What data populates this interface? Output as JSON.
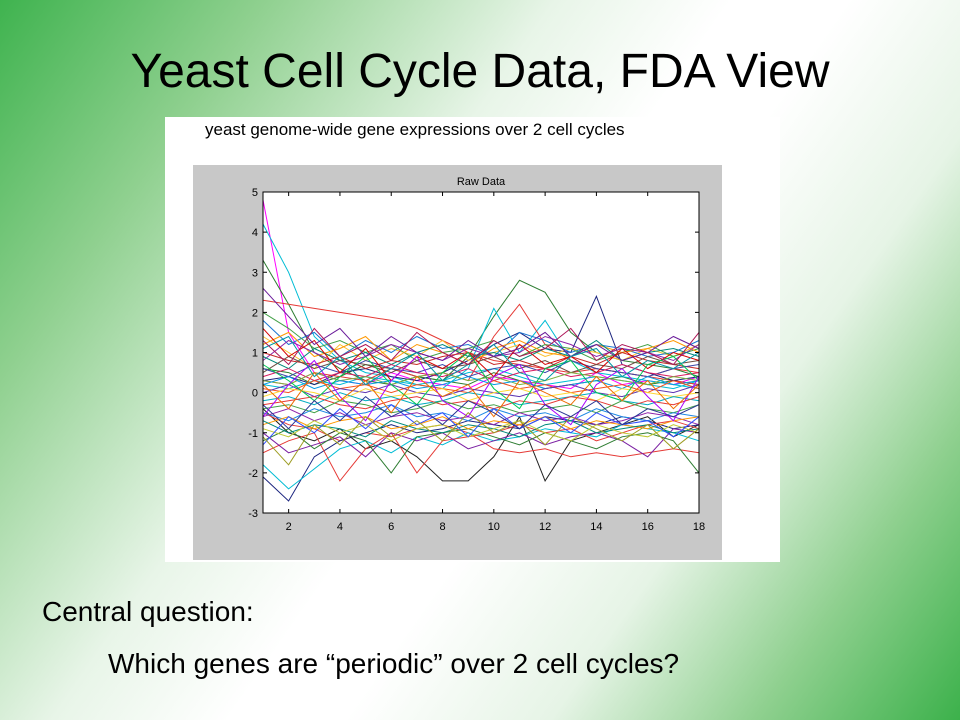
{
  "slide": {
    "title": "Yeast Cell Cycle Data, FDA View",
    "figure_caption": "yeast genome-wide gene expressions over 2 cell cycles",
    "question_label": "Central question:",
    "question_text": "Which genes are “periodic” over 2 cell cycles?"
  },
  "chart_data": {
    "type": "line",
    "title": "Raw Data",
    "xlabel": "",
    "ylabel": "",
    "xlim": [
      1,
      18
    ],
    "ylim": [
      -3,
      5
    ],
    "xticks": [
      2,
      4,
      6,
      8,
      10,
      12,
      14,
      16,
      18
    ],
    "yticks": [
      -3,
      -2,
      -1,
      0,
      1,
      2,
      3,
      4,
      5
    ],
    "x": [
      1,
      2,
      3,
      4,
      5,
      6,
      7,
      8,
      9,
      10,
      11,
      12,
      13,
      14,
      15,
      16,
      17,
      18
    ],
    "grid": false,
    "legend": "none",
    "series": [
      {
        "values": [
          4.8,
          1.5,
          0.5,
          0.3,
          0.2,
          0.5,
          0.3,
          0.2,
          0.1,
          0.4,
          0.3,
          0.2,
          0.1,
          0.5,
          0.2,
          0.3,
          0.2,
          0.4
        ],
        "color": "#ff00ff"
      },
      {
        "values": [
          4.2,
          3.0,
          1.4,
          0.8,
          0.5,
          0.4,
          0.2,
          0.3,
          0.5,
          0.6,
          0.4,
          0.2,
          0.3,
          0.4,
          0.3,
          0.2,
          0.1,
          0.3
        ],
        "color": "#00bcd4"
      },
      {
        "values": [
          3.3,
          2.2,
          1.0,
          0.6,
          0.3,
          0.2,
          0.4,
          0.3,
          0.2,
          0.5,
          0.3,
          0.1,
          0.2,
          0.3,
          0.4,
          0.2,
          0.3,
          0.2
        ],
        "color": "#2e7d32"
      },
      {
        "values": [
          2.3,
          2.2,
          2.1,
          2.0,
          1.9,
          1.8,
          1.6,
          1.3,
          1.0,
          0.8,
          0.7,
          0.6,
          0.5,
          0.6,
          0.5,
          0.4,
          0.3,
          0.2
        ],
        "color": "#e53935"
      },
      {
        "values": [
          0.6,
          0.5,
          0.2,
          0.4,
          0.7,
          0.6,
          0.4,
          0.3,
          0.9,
          1.9,
          2.8,
          2.5,
          1.5,
          1.0,
          0.8,
          0.7,
          0.6,
          0.4
        ],
        "color": "#2e7d32"
      },
      {
        "values": [
          0.3,
          0.4,
          0.2,
          0.5,
          0.6,
          0.4,
          0.3,
          0.5,
          0.8,
          1.2,
          1.5,
          1.1,
          1.0,
          2.4,
          0.7,
          0.5,
          0.3,
          0.4
        ],
        "color": "#1a237e"
      },
      {
        "values": [
          0.2,
          0.1,
          0.3,
          0.2,
          0.4,
          0.3,
          0.2,
          0.1,
          0.6,
          2.1,
          1.0,
          1.8,
          0.8,
          0.5,
          0.4,
          0.3,
          0.2,
          0.1
        ],
        "color": "#00bcd4"
      },
      {
        "values": [
          0.3,
          0.2,
          0.5,
          0.4,
          0.3,
          0.6,
          0.4,
          0.5,
          0.3,
          1.4,
          2.2,
          1.2,
          0.8,
          0.6,
          0.5,
          0.4,
          0.6,
          0.5
        ],
        "color": "#e53935"
      },
      {
        "values": [
          -0.4,
          -1.0,
          -1.2,
          -0.9,
          -1.4,
          -1.2,
          -1.6,
          -2.2,
          -2.2,
          -1.6,
          -0.6,
          -2.2,
          -1.2,
          -1.0,
          -0.8,
          -0.6,
          -1.1,
          -0.8
        ],
        "color": "#212121"
      },
      {
        "values": [
          -0.5,
          -0.8,
          -0.9,
          -1.2,
          -1.0,
          -1.1,
          -0.9,
          -0.8,
          -1.0,
          -1.4,
          -1.5,
          -1.4,
          -1.6,
          -1.5,
          -1.6,
          -1.5,
          -1.4,
          -1.5
        ],
        "color": "#e53935"
      },
      {
        "values": [
          -2.1,
          -2.7,
          -1.6,
          -1.2,
          -1.0,
          -0.8,
          -1.0,
          -0.9,
          -0.7,
          -0.8,
          -0.9,
          -0.6,
          -0.7,
          -0.8,
          -0.6,
          -0.7,
          -0.9,
          -0.8
        ],
        "color": "#1a237e"
      },
      {
        "values": [
          -1.8,
          -2.4,
          -1.9,
          -1.4,
          -1.2,
          -1.5,
          -1.1,
          -1.3,
          -1.0,
          -1.2,
          -1.1,
          -0.9,
          -1.0,
          -1.1,
          -0.8,
          -0.9,
          -1.0,
          -1.2
        ],
        "color": "#00bcd4"
      },
      {
        "values": [
          -1.5,
          -1.2,
          -1.0,
          -2.2,
          -1.4,
          -1.0,
          -2.0,
          -1.2,
          -1.1,
          -1.0,
          -0.8,
          -1.0,
          -0.9,
          -1.2,
          -1.0,
          -0.8,
          -0.7,
          -0.9
        ],
        "color": "#e53935"
      },
      {
        "values": [
          -1.0,
          -1.5,
          -1.3,
          -1.1,
          -1.6,
          -1.0,
          -1.2,
          -1.0,
          -1.4,
          -1.2,
          -1.0,
          -1.3,
          -1.1,
          -1.0,
          -1.2,
          -1.6,
          -0.9,
          -1.0
        ],
        "color": "#7b1fa2"
      },
      {
        "values": [
          -1.2,
          -0.9,
          -1.4,
          -1.0,
          -1.2,
          -2.0,
          -1.1,
          -1.0,
          -0.9,
          -1.1,
          -1.3,
          -1.0,
          -1.2,
          -1.4,
          -1.1,
          -1.0,
          -1.2,
          -2.0
        ],
        "color": "#2e7d32"
      },
      {
        "values": [
          1.4,
          1.0,
          0.6,
          1.2,
          0.8,
          1.1,
          0.9,
          1.3,
          0.8,
          1.0,
          1.2,
          0.9,
          1.1,
          1.0,
          0.8,
          1.1,
          0.9,
          1.2
        ],
        "color": "#fbc02d"
      },
      {
        "values": [
          1.8,
          1.2,
          1.5,
          0.9,
          1.3,
          1.0,
          1.4,
          1.1,
          1.2,
          0.9,
          1.5,
          1.3,
          1.0,
          1.2,
          1.1,
          0.9,
          1.0,
          1.3
        ],
        "color": "#1976d2"
      },
      {
        "values": [
          2.0,
          1.6,
          1.1,
          1.3,
          1.0,
          1.2,
          0.8,
          1.0,
          1.1,
          1.3,
          0.9,
          1.2,
          1.1,
          0.8,
          1.0,
          1.2,
          0.9,
          1.1
        ],
        "color": "#43a047"
      },
      {
        "values": [
          1.2,
          1.5,
          0.9,
          1.1,
          1.4,
          0.8,
          1.2,
          1.0,
          0.7,
          1.1,
          1.3,
          1.0,
          0.9,
          1.2,
          1.0,
          1.1,
          1.3,
          1.0
        ],
        "color": "#ff9800"
      },
      {
        "values": [
          0.8,
          1.3,
          1.0,
          0.7,
          0.9,
          1.2,
          1.0,
          0.8,
          1.1,
          0.9,
          1.0,
          1.4,
          1.2,
          0.9,
          1.1,
          1.0,
          0.8,
          1.2
        ],
        "color": "#8e24aa"
      },
      {
        "values": [
          0.9,
          0.6,
          1.1,
          0.8,
          1.0,
          0.7,
          1.0,
          1.2,
          0.9,
          1.0,
          0.8,
          1.1,
          0.9,
          1.3,
          0.8,
          1.0,
          1.1,
          0.9
        ],
        "color": "#00897b"
      },
      {
        "values": [
          1.0,
          0.8,
          0.7,
          0.9,
          0.6,
          0.8,
          0.7,
          0.9,
          1.0,
          0.7,
          0.8,
          0.6,
          0.9,
          0.7,
          1.0,
          0.8,
          0.7,
          0.6
        ],
        "color": "#c62828"
      },
      {
        "values": [
          0.5,
          0.9,
          0.6,
          0.8,
          0.7,
          0.5,
          0.8,
          0.6,
          0.7,
          0.9,
          0.6,
          0.8,
          0.5,
          0.7,
          0.6,
          0.9,
          0.7,
          0.8
        ],
        "color": "#6d4c41"
      },
      {
        "values": [
          0.6,
          0.4,
          0.7,
          0.5,
          0.8,
          0.6,
          0.5,
          0.7,
          0.4,
          0.6,
          0.7,
          0.5,
          0.8,
          0.6,
          0.5,
          0.4,
          0.6,
          0.7
        ],
        "color": "#3949ab"
      },
      {
        "values": [
          0.4,
          0.6,
          0.3,
          0.5,
          0.4,
          0.7,
          0.5,
          0.4,
          0.6,
          0.3,
          0.5,
          0.6,
          0.4,
          0.5,
          0.7,
          0.5,
          0.4,
          0.5
        ],
        "color": "#d81b60"
      },
      {
        "values": [
          0.3,
          0.2,
          0.5,
          0.3,
          0.4,
          0.2,
          0.4,
          0.5,
          0.3,
          0.4,
          0.2,
          0.3,
          0.5,
          0.4,
          0.3,
          0.2,
          0.4,
          0.3
        ],
        "color": "#7cb342"
      },
      {
        "values": [
          0.2,
          0.4,
          0.1,
          0.3,
          0.2,
          0.3,
          0.1,
          0.2,
          0.4,
          0.2,
          0.3,
          0.1,
          0.2,
          0.3,
          0.1,
          0.4,
          0.2,
          0.3
        ],
        "color": "#039be5"
      },
      {
        "values": [
          0.1,
          0.0,
          0.3,
          0.1,
          0.2,
          0.0,
          0.2,
          0.1,
          0.0,
          0.3,
          0.1,
          0.2,
          0.0,
          0.1,
          0.2,
          0.0,
          0.3,
          0.1
        ],
        "color": "#f4511e"
      },
      {
        "values": [
          0.0,
          0.2,
          -0.1,
          0.1,
          0.0,
          0.2,
          0.0,
          -0.1,
          0.1,
          0.0,
          -0.1,
          0.1,
          0.2,
          0.0,
          -0.1,
          0.1,
          0.0,
          0.2
        ],
        "color": "#5e35b1"
      },
      {
        "values": [
          -0.1,
          0.1,
          0.0,
          -0.2,
          0.1,
          -0.1,
          0.0,
          0.1,
          -0.2,
          0.0,
          0.1,
          -0.1,
          0.0,
          -0.2,
          0.1,
          0.0,
          -0.1,
          0.0
        ],
        "color": "#fdd835"
      },
      {
        "values": [
          -0.2,
          -0.1,
          -0.3,
          0.0,
          -0.2,
          -0.1,
          -0.3,
          -0.2,
          0.0,
          -0.1,
          -0.3,
          -0.2,
          -0.1,
          0.0,
          -0.2,
          -0.3,
          -0.1,
          -0.2
        ],
        "color": "#00acc1"
      },
      {
        "values": [
          -0.3,
          -0.2,
          -0.1,
          -0.3,
          -0.4,
          -0.2,
          -0.1,
          -0.3,
          -0.2,
          -0.4,
          -0.2,
          -0.3,
          -0.1,
          -0.2,
          -0.4,
          -0.2,
          -0.3,
          -0.1
        ],
        "color": "#e53935"
      },
      {
        "values": [
          -0.4,
          -0.3,
          -0.5,
          -0.2,
          -0.3,
          -0.5,
          -0.4,
          -0.2,
          -0.4,
          -0.3,
          -0.5,
          -0.4,
          -0.3,
          -0.5,
          -0.2,
          -0.4,
          -0.5,
          -0.3
        ],
        "color": "#43a047"
      },
      {
        "values": [
          -0.5,
          -0.7,
          -0.4,
          -0.6,
          -0.5,
          -0.3,
          -0.6,
          -0.5,
          -0.7,
          -0.4,
          -0.6,
          -0.5,
          -0.7,
          -0.4,
          -0.6,
          -0.7,
          -0.5,
          -0.6
        ],
        "color": "#1e88e5"
      },
      {
        "values": [
          -0.6,
          -0.4,
          -0.7,
          -0.5,
          -0.8,
          -0.6,
          -0.5,
          -0.7,
          -0.6,
          -0.8,
          -0.5,
          -0.7,
          -0.6,
          -0.8,
          -0.7,
          -0.5,
          -0.6,
          -0.8
        ],
        "color": "#8e24aa"
      },
      {
        "values": [
          -0.8,
          -0.6,
          -0.9,
          -0.7,
          -0.6,
          -0.9,
          -0.8,
          -0.6,
          -0.9,
          -0.7,
          -0.8,
          -0.6,
          -0.9,
          -0.7,
          -0.8,
          -0.9,
          -0.7,
          -0.6
        ],
        "color": "#ff9800"
      },
      {
        "values": [
          -0.7,
          -1.0,
          -0.8,
          -0.9,
          -1.1,
          -0.7,
          -0.9,
          -1.0,
          -0.8,
          -0.9,
          -1.1,
          -0.8,
          -0.7,
          -1.0,
          -0.9,
          -0.8,
          -1.0,
          -0.9
        ],
        "color": "#00897b"
      },
      {
        "values": [
          -0.9,
          -1.1,
          -0.7,
          -1.0,
          -0.8,
          -1.2,
          -0.9,
          -0.8,
          -1.1,
          -0.9,
          -0.7,
          -1.0,
          -1.2,
          -0.8,
          -1.0,
          -1.1,
          -0.8,
          -1.0
        ],
        "color": "#c0ca33"
      },
      {
        "values": [
          1.6,
          0.9,
          1.3,
          0.5,
          1.1,
          0.3,
          0.9,
          0.6,
          1.0,
          0.4,
          1.2,
          0.7,
          0.9,
          0.5,
          1.1,
          0.6,
          1.0,
          0.8
        ],
        "color": "#d50000"
      },
      {
        "values": [
          -1.3,
          -0.6,
          -1.0,
          -0.4,
          -0.9,
          -0.3,
          -0.8,
          -0.5,
          -1.1,
          -0.4,
          -0.9,
          -0.6,
          -1.0,
          -0.5,
          -0.8,
          -0.7,
          -1.1,
          -0.6
        ],
        "color": "#304ffe"
      },
      {
        "values": [
          0.7,
          0.3,
          -0.2,
          0.4,
          0.9,
          0.2,
          -0.3,
          0.5,
          1.0,
          0.1,
          -0.4,
          0.6,
          0.8,
          0.0,
          -0.2,
          0.7,
          0.9,
          0.3
        ],
        "color": "#00c853"
      },
      {
        "values": [
          -0.6,
          0.2,
          0.8,
          -0.1,
          -0.7,
          0.3,
          0.9,
          -0.2,
          -0.6,
          0.4,
          0.7,
          -0.3,
          -0.8,
          0.2,
          0.6,
          -0.1,
          -0.7,
          0.4
        ],
        "color": "#aa00ff"
      },
      {
        "values": [
          2.6,
          1.9,
          1.2,
          1.6,
          0.9,
          1.4,
          1.0,
          0.8,
          1.3,
          0.9,
          1.1,
          1.5,
          0.9,
          1.2,
          0.8,
          1.0,
          1.4,
          1.1
        ],
        "color": "#6a1b9a"
      },
      {
        "values": [
          0.2,
          -0.4,
          0.5,
          -0.2,
          0.3,
          -0.5,
          0.4,
          -0.1,
          0.2,
          -0.6,
          0.3,
          0.0,
          -0.3,
          0.4,
          -0.2,
          0.3,
          -0.4,
          0.2
        ],
        "color": "#ef6c00"
      },
      {
        "values": [
          1.1,
          1.4,
          0.4,
          0.9,
          0.2,
          0.6,
          1.0,
          0.3,
          0.7,
          1.2,
          0.5,
          0.3,
          0.9,
          1.1,
          0.4,
          0.8,
          0.6,
          1.0
        ],
        "color": "#0097a7"
      },
      {
        "values": [
          -1.1,
          -1.8,
          -0.8,
          -1.3,
          -0.6,
          -1.1,
          -0.7,
          -1.2,
          -0.5,
          -1.0,
          -0.7,
          -1.3,
          -0.6,
          -0.9,
          -1.2,
          -0.8,
          -1.4,
          -0.9
        ],
        "color": "#9e9d24"
      },
      {
        "values": [
          1.3,
          0.7,
          1.6,
          0.9,
          1.2,
          0.8,
          1.5,
          1.0,
          0.7,
          1.3,
          0.9,
          1.1,
          1.6,
          0.8,
          1.2,
          1.0,
          0.7,
          1.5
        ],
        "color": "#ad1457"
      },
      {
        "values": [
          -0.3,
          -0.9,
          -0.2,
          -0.7,
          -0.1,
          -0.6,
          -0.3,
          -0.8,
          -0.2,
          -0.5,
          -0.9,
          -0.3,
          -0.6,
          -0.2,
          -0.8,
          -0.4,
          -0.6,
          -0.3
        ],
        "color": "#283593"
      }
    ]
  }
}
